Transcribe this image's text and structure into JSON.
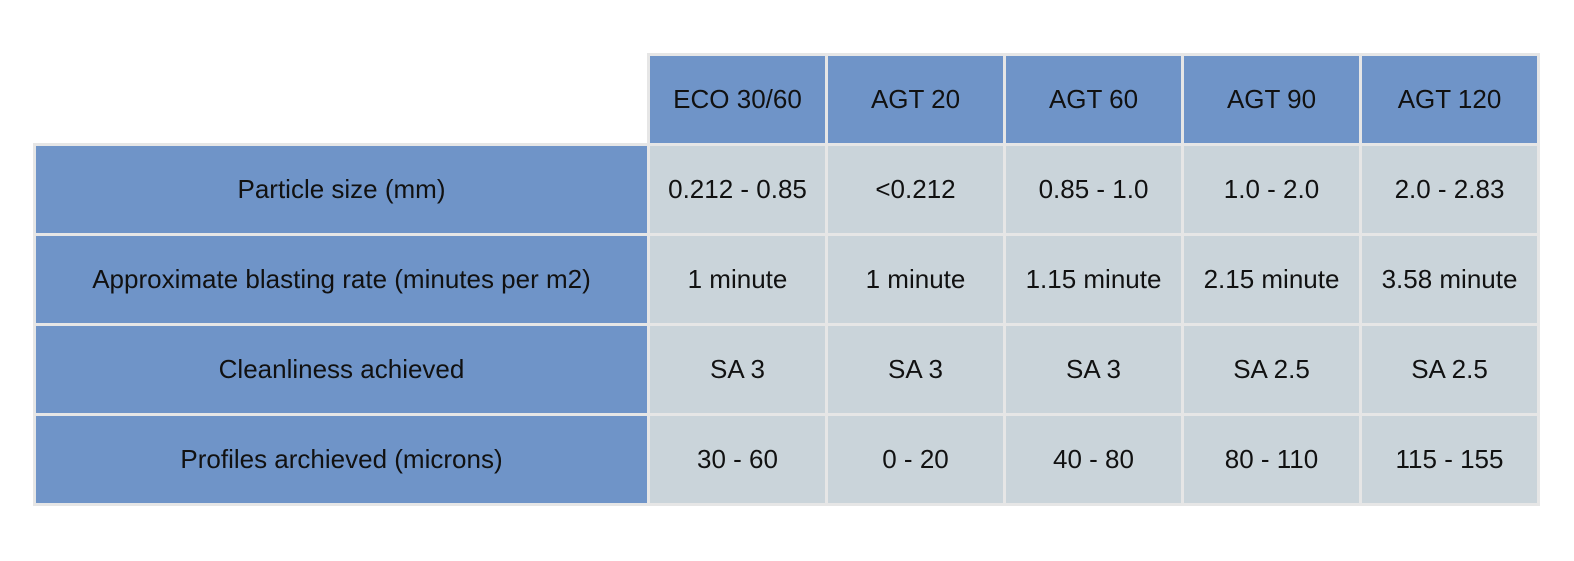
{
  "table": {
    "columns": [
      "ECO 30/60",
      "AGT 20",
      "AGT 60",
      "AGT 90",
      "AGT 120"
    ],
    "rows": [
      {
        "label": "Particle size (mm)",
        "values": [
          "0.212 - 0.85",
          "<0.212",
          "0.85 - 1.0",
          "1.0 - 2.0",
          "2.0 - 2.83"
        ]
      },
      {
        "label": "Approximate blasting rate (minutes per m2)",
        "values": [
          "1 minute",
          "1 minute",
          "1.15 minute",
          "2.15 minute",
          "3.58 minute"
        ]
      },
      {
        "label": "Cleanliness achieved",
        "values": [
          "SA 3",
          "SA 3",
          "SA 3",
          "SA 2.5",
          "SA 2.5"
        ]
      },
      {
        "label": "Profiles archieved (microns)",
        "values": [
          "30 - 60",
          "0 - 20",
          "40 - 80",
          "80 - 110",
          "115 - 155"
        ]
      }
    ]
  },
  "colors": {
    "header_fill": "#6f94c8",
    "value_fill": "#cad4da",
    "grid_line": "#e6e6e6"
  }
}
